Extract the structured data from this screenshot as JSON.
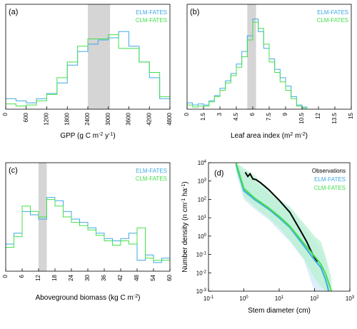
{
  "colors": {
    "elm": "#3fa9e6",
    "clm": "#43e04a",
    "obs": "#000000",
    "band": "#d5d5d5",
    "elm_fill": "#cfe8f7",
    "clm_fill": "#b8f0d0"
  },
  "chart_data": [
    {
      "id": "a",
      "type": "histogram",
      "panel_label": "(a)",
      "xlabel_main": "GPP (g C m",
      "xlabel_sup1": "-2",
      "xlabel_mid": " y",
      "xlabel_sup2": "-1",
      "xlabel_end": ")",
      "xlim": [
        0,
        4800
      ],
      "ylim": [
        0,
        1
      ],
      "xticks": [
        0,
        600,
        1200,
        1800,
        2400,
        3000,
        3600,
        4200,
        4800
      ],
      "band": [
        2400,
        3050
      ],
      "bin_edges": [
        0,
        300,
        600,
        900,
        1200,
        1500,
        1800,
        2100,
        2400,
        2700,
        3000,
        3300,
        3600,
        3900,
        4200,
        4500,
        4800
      ],
      "legend": [
        "ELM-FATES",
        "CLM-FATES"
      ],
      "series": [
        {
          "name": "ELM-FATES",
          "values": [
            0.1,
            0.08,
            0.06,
            0.1,
            0.15,
            0.25,
            0.42,
            0.55,
            0.62,
            0.66,
            0.68,
            0.74,
            0.6,
            0.45,
            0.3,
            0.1
          ]
        },
        {
          "name": "CLM-FATES",
          "values": [
            0.05,
            0.03,
            0.04,
            0.08,
            0.14,
            0.3,
            0.45,
            0.6,
            0.67,
            0.67,
            0.71,
            0.58,
            0.58,
            0.45,
            0.35,
            0.12
          ]
        }
      ]
    },
    {
      "id": "b",
      "type": "histogram",
      "panel_label": "(b)",
      "xlabel_main": "Leaf area index (m",
      "xlabel_sup1": "2",
      "xlabel_mid": " m",
      "xlabel_sup2": "-2",
      "xlabel_end": ")",
      "xlim": [
        0,
        15
      ],
      "ylim": [
        0,
        1
      ],
      "xticks": [
        0,
        1.5,
        3,
        4.5,
        6,
        7.5,
        9,
        10.5,
        12,
        13.5,
        15
      ],
      "band": [
        5.5,
        6.3
      ],
      "bin_edges": [
        0,
        0.5,
        1,
        1.5,
        2,
        2.5,
        3,
        3.5,
        4,
        4.5,
        5,
        5.5,
        6,
        6.5,
        7,
        7.5,
        8,
        8.5,
        9,
        9.5,
        10,
        10.5,
        11
      ],
      "legend": [
        "ELM-FATES",
        "CLM-FATES"
      ],
      "series": [
        {
          "name": "ELM-FATES",
          "values": [
            0.06,
            0.04,
            0.05,
            0.04,
            0.08,
            0.13,
            0.2,
            0.27,
            0.34,
            0.43,
            0.55,
            0.7,
            0.86,
            0.74,
            0.58,
            0.48,
            0.38,
            0.3,
            0.22,
            0.12,
            0.04,
            0.02
          ]
        },
        {
          "name": "CLM-FATES",
          "values": [
            0.04,
            0.02,
            0.03,
            0.03,
            0.07,
            0.12,
            0.18,
            0.25,
            0.32,
            0.4,
            0.5,
            0.66,
            0.83,
            0.77,
            0.62,
            0.45,
            0.35,
            0.26,
            0.18,
            0.1,
            0.03,
            0.01
          ]
        }
      ]
    },
    {
      "id": "c",
      "type": "histogram",
      "panel_label": "(c)",
      "xlabel_main": "Aboveground biomass (kg C m",
      "xlabel_sup1": "-2",
      "xlabel_mid": "",
      "xlabel_sup2": "",
      "xlabel_end": ")",
      "xlim": [
        0,
        60
      ],
      "ylim": [
        0,
        1
      ],
      "xticks": [
        0,
        6,
        12,
        18,
        24,
        30,
        36,
        42,
        48,
        54,
        60
      ],
      "band": [
        12,
        15
      ],
      "bin_edges": [
        0,
        3,
        6,
        9,
        12,
        15,
        18,
        21,
        24,
        27,
        30,
        33,
        36,
        39,
        42,
        45,
        48,
        51,
        54,
        57,
        60
      ],
      "legend": [
        "ELM-FATES",
        "CLM-FATES"
      ],
      "series": [
        {
          "name": "ELM-FATES",
          "values": [
            0.25,
            0.35,
            0.55,
            0.52,
            0.48,
            0.68,
            0.65,
            0.55,
            0.48,
            0.45,
            0.4,
            0.35,
            0.3,
            0.28,
            0.3,
            0.35,
            0.1,
            0.15,
            0.08,
            0.12
          ]
        },
        {
          "name": "CLM-FATES",
          "values": [
            0.22,
            0.32,
            0.6,
            0.55,
            0.5,
            0.66,
            0.6,
            0.5,
            0.45,
            0.42,
            0.38,
            0.33,
            0.28,
            0.24,
            0.28,
            0.25,
            0.4,
            0.12,
            0.1,
            0.1
          ]
        }
      ]
    },
    {
      "id": "d",
      "type": "line",
      "panel_label": "(d)",
      "xscale": "log",
      "yscale": "log",
      "xlabel": "Stem diameter (cm)",
      "ylabel_main": "Number density (n cm",
      "ylabel_sup1": "-1",
      "ylabel_mid": " ha",
      "ylabel_sup2": "-1",
      "ylabel_end": ")",
      "xlim_exp": [
        -1,
        3
      ],
      "ylim_exp": [
        -3,
        4
      ],
      "xtick_exps": [
        "-1",
        "0",
        "1",
        "2",
        "3"
      ],
      "ytick_exps": [
        "-3",
        "-2",
        "-1",
        "0",
        "1",
        "2",
        "3",
        "4"
      ],
      "tick_base": "10",
      "legend": [
        "Observations",
        "ELM-FATES",
        "CLM-FATES"
      ],
      "series": [
        {
          "name": "Observations",
          "color_key": "obs",
          "x": [
            1.1,
            1.3,
            1.5,
            1.8,
            2.2,
            3,
            5,
            10,
            20,
            40,
            60,
            80,
            100,
            120
          ],
          "y": [
            3000,
            1800,
            2500,
            1300,
            1200,
            800,
            350,
            90,
            20,
            2,
            0.5,
            0.15,
            0.07,
            0.04
          ]
        },
        {
          "name": "ELM-FATES",
          "color_key": "elm",
          "x": [
            0.6,
            1,
            2,
            5,
            10,
            20,
            50,
            100,
            150,
            200,
            230,
            250
          ],
          "y": [
            8000,
            300,
            100,
            30,
            10,
            3,
            0.3,
            0.05,
            0.02,
            0.005,
            0.002,
            0.001
          ],
          "band_lo": [
            3000,
            100,
            30,
            8,
            2,
            0.5,
            0.05,
            0.001,
            0.001,
            0.001,
            0.001,
            0.001
          ],
          "band_hi": [
            10000,
            3000,
            1000,
            200,
            80,
            30,
            3,
            0.5,
            0.2,
            0.05,
            0.01,
            0.005
          ]
        },
        {
          "name": "CLM-FATES",
          "color_key": "clm",
          "x": [
            0.6,
            1,
            2,
            5,
            10,
            20,
            50,
            100,
            150,
            200,
            250,
            300
          ],
          "y": [
            10000,
            400,
            120,
            35,
            12,
            3.5,
            0.4,
            0.08,
            0.03,
            0.01,
            0.003,
            0.001
          ],
          "band_lo": [
            4000,
            150,
            40,
            10,
            3,
            0.6,
            0.06,
            0.005,
            0.002,
            0.001,
            0.001,
            0.001
          ],
          "band_hi": [
            10000,
            5000,
            2000,
            300,
            100,
            40,
            5,
            1,
            0.5,
            0.1,
            0.02,
            0.005
          ]
        }
      ]
    }
  ]
}
